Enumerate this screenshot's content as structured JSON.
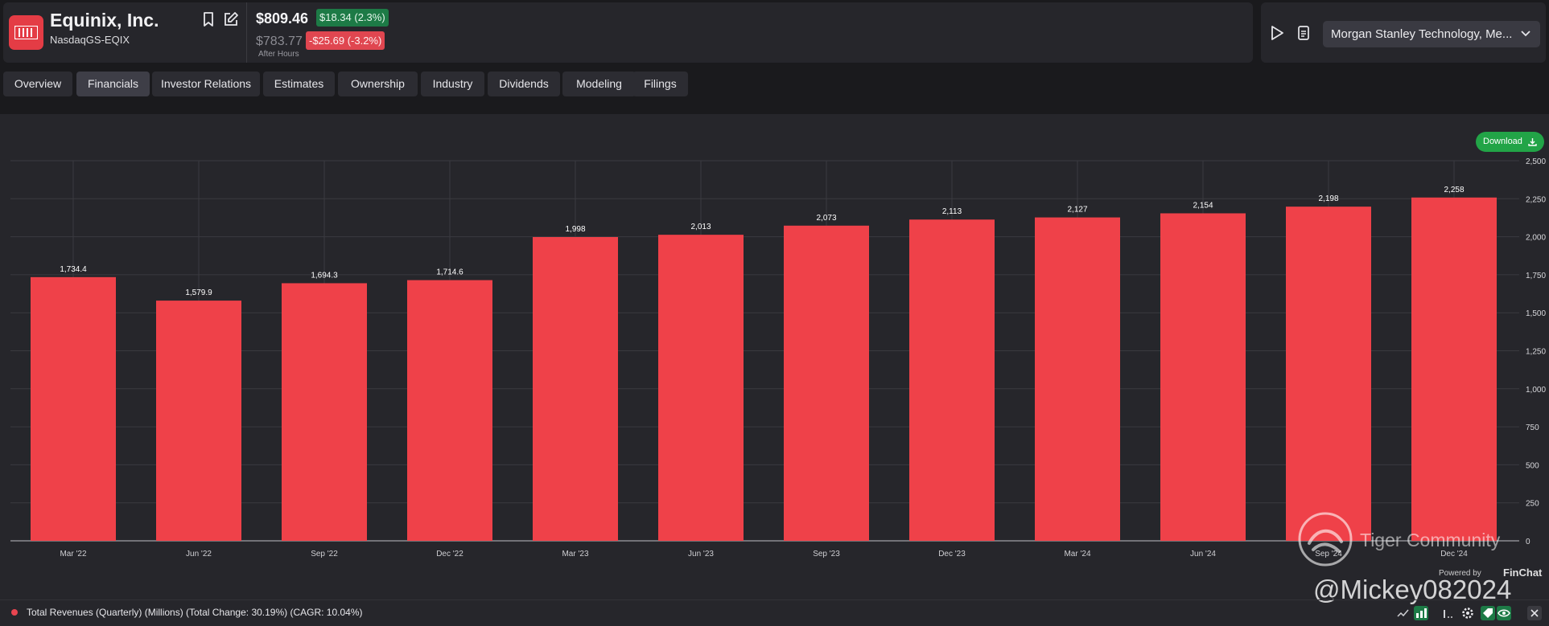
{
  "company": {
    "name": "Equinix, Inc.",
    "ticker": "NasdaqGS-EQIX",
    "price": "$809.46",
    "change": "$18.34 (2.3%)",
    "after_hours_price": "$783.77",
    "after_hours_label": "After Hours",
    "after_hours_change": "-$25.69 (-3.2%)"
  },
  "event": {
    "selected": "Morgan Stanley Technology, Me..."
  },
  "tabs": [
    "Overview",
    "Financials",
    "Investor Relations",
    "Estimates",
    "Ownership",
    "Industry",
    "Dividends",
    "Modeling",
    "Filings"
  ],
  "active_tab": "Financials",
  "download_label": "Download",
  "legend_text": "Total Revenues (Quarterly) (Millions) (Total Change: 30.19%) (CAGR: 10.04%)",
  "watermarks": {
    "community": "Tiger Community",
    "powered_by": "Powered by",
    "brand": "FinChat",
    "handle": "@Mickey082024"
  },
  "icons": {
    "bookmark": "bookmark-icon",
    "edit": "edit-icon",
    "play": "play-icon",
    "document": "document-icon",
    "chevron": "chevron-down-icon",
    "download": "download-icon"
  },
  "colors": {
    "bar": "#ef4149",
    "positive": "#1d7a46",
    "negative": "#e04650",
    "download": "#22a447"
  },
  "chart_data": {
    "type": "bar",
    "categories": [
      "Mar '22",
      "Jun '22",
      "Sep '22",
      "Dec '22",
      "Mar '23",
      "Jun '23",
      "Sep '23",
      "Dec '23",
      "Mar '24",
      "Jun '24",
      "Sep '24",
      "Dec '24"
    ],
    "values": [
      1734.4,
      1579.9,
      1694.3,
      1714.6,
      1998,
      2013,
      2073,
      2113,
      2127,
      2154,
      2198,
      2258
    ],
    "value_labels": [
      "1,734.4",
      "1,579.9",
      "1,694.3",
      "1,714.6",
      "1,998",
      "2,013",
      "2,073",
      "2,113",
      "2,127",
      "2,154",
      "2,198",
      "2,258"
    ],
    "y_ticks": [
      0,
      250,
      500,
      750,
      1000,
      1250,
      1500,
      1750,
      2000,
      2250,
      2500
    ],
    "y_tick_labels": [
      "0",
      "250",
      "500",
      "750",
      "1,000",
      "1,250",
      "1,500",
      "1,750",
      "2,000",
      "2,250",
      "2,500"
    ],
    "ylim": [
      0,
      2500
    ],
    "y_axis_side": "right",
    "grid": true,
    "series": [
      {
        "name": "Total Revenues (Quarterly) (Millions)",
        "values": [
          1734.4,
          1579.9,
          1694.3,
          1714.6,
          1998,
          2013,
          2073,
          2113,
          2127,
          2154,
          2198,
          2258
        ]
      }
    ]
  }
}
